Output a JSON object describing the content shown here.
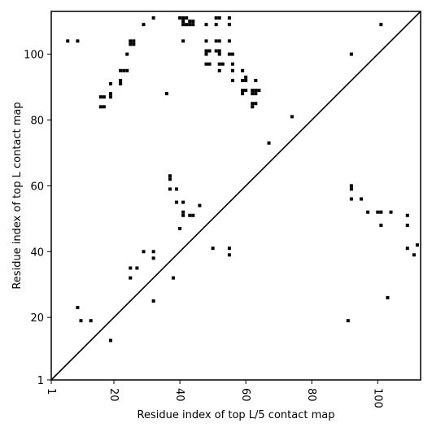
{
  "chart_data": {
    "type": "scatter",
    "xlabel": "Residue index of top L/5 contact map",
    "ylabel": "Residue index of top L contact map",
    "xlim": [
      1,
      113
    ],
    "ylim": [
      1,
      113
    ],
    "xticks": [
      1,
      20,
      40,
      60,
      80,
      100
    ],
    "yticks": [
      1,
      20,
      40,
      60,
      80,
      100
    ],
    "xtick_labels": [
      "1",
      "20",
      "40",
      "60",
      "80",
      "100"
    ],
    "ytick_labels": [
      "1",
      "20",
      "40",
      "60",
      "80",
      "100"
    ],
    "diagonal": [
      [
        1,
        1
      ],
      [
        113,
        113
      ]
    ],
    "grid": false,
    "legend": "none",
    "marker_color": "#000000",
    "series": [
      {
        "points": [
          [
            6,
            104
          ],
          [
            9,
            104
          ],
          [
            24,
            100
          ],
          [
            25,
            103
          ],
          [
            25,
            104
          ],
          [
            26,
            103
          ],
          [
            26,
            104
          ],
          [
            29,
            109
          ],
          [
            32,
            111
          ],
          [
            40,
            111
          ],
          [
            41,
            111
          ],
          [
            42,
            111
          ],
          [
            41,
            110
          ],
          [
            41,
            109
          ],
          [
            42,
            109
          ],
          [
            43,
            110
          ],
          [
            44,
            110
          ],
          [
            43,
            109
          ],
          [
            44,
            109
          ],
          [
            41,
            104
          ],
          [
            48,
            109
          ],
          [
            51,
            109
          ],
          [
            51,
            111
          ],
          [
            52,
            111
          ],
          [
            55,
            111
          ],
          [
            55,
            109
          ],
          [
            48,
            104
          ],
          [
            51,
            104
          ],
          [
            52,
            104
          ],
          [
            55,
            104
          ],
          [
            48,
            101
          ],
          [
            48,
            100
          ],
          [
            49,
            101
          ],
          [
            51,
            101
          ],
          [
            52,
            101
          ],
          [
            52,
            100
          ],
          [
            55,
            100
          ],
          [
            56,
            100
          ],
          [
            56,
            97
          ],
          [
            56,
            95
          ],
          [
            48,
            97
          ],
          [
            49,
            97
          ],
          [
            52,
            97
          ],
          [
            53,
            97
          ],
          [
            52,
            95
          ],
          [
            56,
            92
          ],
          [
            59,
            95
          ],
          [
            59,
            92
          ],
          [
            60,
            92
          ],
          [
            60,
            93
          ],
          [
            59,
            89
          ],
          [
            60,
            89
          ],
          [
            59,
            88
          ],
          [
            62,
            89
          ],
          [
            63,
            89
          ],
          [
            63,
            88
          ],
          [
            62,
            88
          ],
          [
            64,
            89
          ],
          [
            63,
            92
          ],
          [
            62,
            85
          ],
          [
            63,
            85
          ],
          [
            62,
            84
          ],
          [
            17,
            87
          ],
          [
            16,
            87
          ],
          [
            19,
            88
          ],
          [
            19,
            87
          ],
          [
            16,
            84
          ],
          [
            17,
            84
          ],
          [
            19,
            91
          ],
          [
            22,
            92
          ],
          [
            22,
            91
          ],
          [
            22,
            95
          ],
          [
            23,
            95
          ],
          [
            24,
            95
          ],
          [
            36,
            88
          ],
          [
            74,
            81
          ],
          [
            67,
            73
          ],
          [
            37,
            63
          ],
          [
            37,
            62
          ],
          [
            37,
            59
          ],
          [
            39,
            59
          ],
          [
            39,
            55
          ],
          [
            41,
            55
          ],
          [
            41,
            52
          ],
          [
            41,
            51
          ],
          [
            43,
            51
          ],
          [
            44,
            51
          ],
          [
            46,
            54
          ],
          [
            40,
            47
          ],
          [
            92,
            100
          ],
          [
            101,
            109
          ],
          [
            92,
            60
          ],
          [
            92,
            59
          ],
          [
            92,
            56
          ],
          [
            95,
            56
          ],
          [
            97,
            52
          ],
          [
            100,
            52
          ],
          [
            101,
            52
          ],
          [
            104,
            52
          ],
          [
            101,
            48
          ],
          [
            109,
            51
          ],
          [
            109,
            48
          ],
          [
            50,
            41
          ],
          [
            55,
            41
          ],
          [
            55,
            39
          ],
          [
            109,
            41
          ],
          [
            111,
            39
          ],
          [
            112,
            42
          ],
          [
            29,
            40
          ],
          [
            32,
            40
          ],
          [
            32,
            38
          ],
          [
            25,
            35
          ],
          [
            27,
            35
          ],
          [
            25,
            32
          ],
          [
            38,
            32
          ],
          [
            32,
            25
          ],
          [
            9,
            23
          ],
          [
            10,
            19
          ],
          [
            13,
            19
          ],
          [
            19,
            13
          ],
          [
            91,
            19
          ],
          [
            103,
            26
          ]
        ]
      }
    ]
  }
}
